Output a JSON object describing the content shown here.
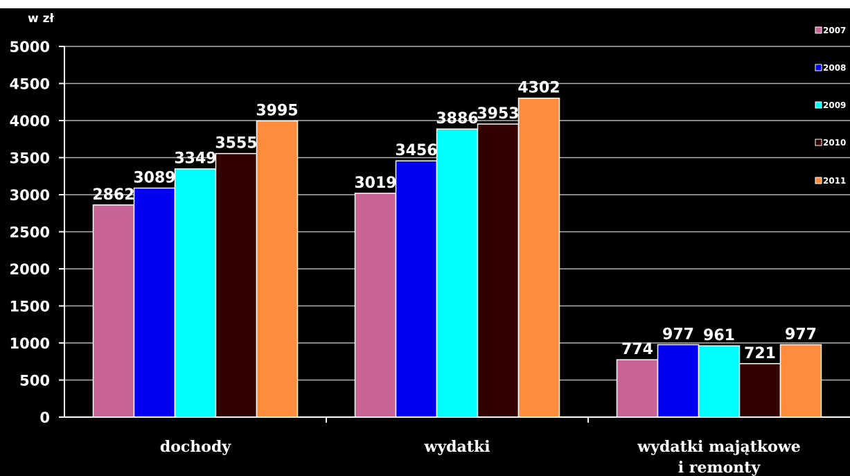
{
  "chart_data": {
    "type": "bar",
    "ylabel": "w zł",
    "ylim": [
      0,
      5000
    ],
    "yticks": [
      0,
      500,
      1000,
      1500,
      2000,
      2500,
      3000,
      3500,
      4000,
      4500,
      5000
    ],
    "grid": true,
    "legend": "right",
    "categories": [
      "dochody",
      "wydatki",
      "wydatki majątkowe\ni remonty"
    ],
    "series": [
      {
        "name": "2007",
        "color": "#c86496",
        "values": [
          2862,
          3019,
          774
        ]
      },
      {
        "name": "2008",
        "color": "#0000f0",
        "values": [
          3089,
          3456,
          977
        ]
      },
      {
        "name": "2009",
        "color": "#00ffff",
        "values": [
          3349,
          3886,
          961
        ]
      },
      {
        "name": "2010",
        "color": "#330000",
        "values": [
          3555,
          3953,
          721
        ]
      },
      {
        "name": "2011",
        "color": "#ff8c3c",
        "values": [
          3995,
          4302,
          977
        ]
      }
    ]
  }
}
